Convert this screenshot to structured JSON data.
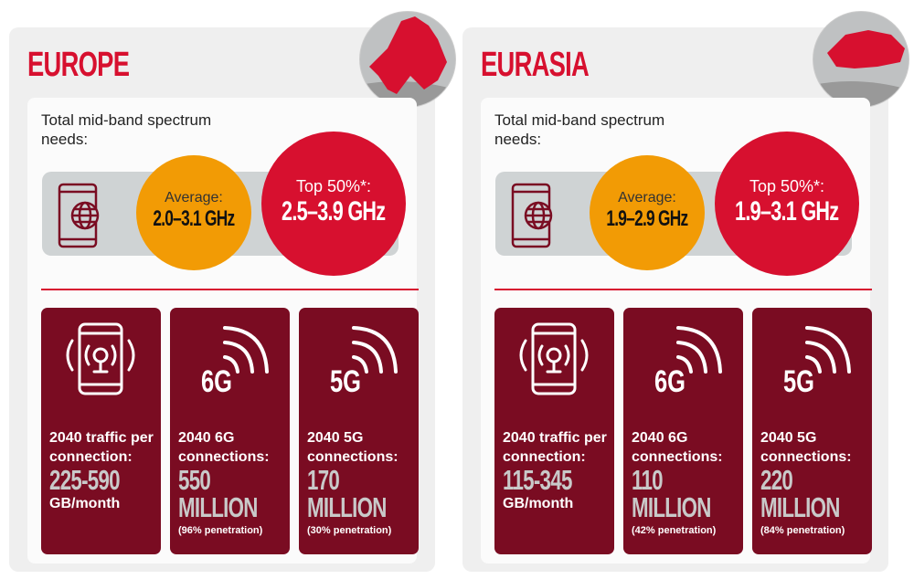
{
  "colors": {
    "red": "#d7102f",
    "maroon": "#7a0c22",
    "orange": "#f29b05",
    "gray": "#cfd3d4"
  },
  "regions": [
    {
      "title": "EUROPE",
      "needs_label": "Total mid-band spectrum needs:",
      "avg_label": "Average:",
      "avg_value": "2.0–3.1 GHz",
      "top_label": "Top 50%*:",
      "top_value": "2.5–3.9 GHz",
      "stats": [
        {
          "icon": "phone-signal-icon",
          "label": "2040 traffic per connection:",
          "value": "225-590",
          "unit": "GB/month"
        },
        {
          "icon": "6g-signal-icon",
          "badge": "6G",
          "label": "2040 6G connections:",
          "value": "550",
          "value2": "MILLION",
          "note": "(96% penetration)"
        },
        {
          "icon": "5g-signal-icon",
          "badge": "5G",
          "label": "2040 5G connections:",
          "value": "170",
          "value2": "MILLION",
          "note": "(30% penetration)"
        }
      ]
    },
    {
      "title": "EURASIA",
      "needs_label": "Total mid-band spectrum needs:",
      "avg_label": "Average:",
      "avg_value": "1.9–2.9 GHz",
      "top_label": "Top 50%*:",
      "top_value": "1.9–3.1 GHz",
      "stats": [
        {
          "icon": "phone-signal-icon",
          "label": "2040 traffic per connection:",
          "value": "115-345",
          "unit": "GB/month"
        },
        {
          "icon": "6g-signal-icon",
          "badge": "6G",
          "label": "2040 6G connections:",
          "value": "110",
          "value2": "MILLION",
          "note": "(42% penetration)"
        },
        {
          "icon": "5g-signal-icon",
          "badge": "5G",
          "label": "2040 5G connections:",
          "value": "220",
          "value2": "MILLION",
          "note": "(84% penetration)"
        }
      ]
    }
  ]
}
